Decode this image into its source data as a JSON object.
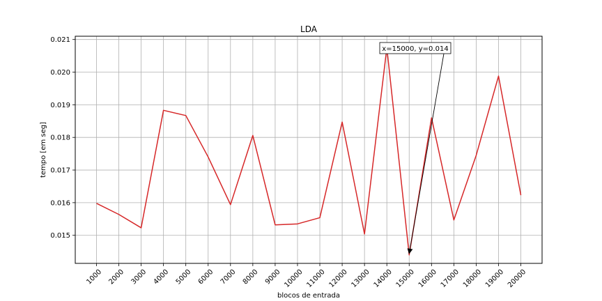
{
  "chart_data": {
    "type": "line",
    "title": "LDA",
    "xlabel": "blocos de entrada",
    "ylabel": "tempo [em seg]",
    "categories": [
      "1000",
      "2000",
      "3000",
      "4000",
      "5000",
      "6000",
      "7000",
      "8000",
      "9000",
      "10000",
      "11000",
      "12000",
      "13000",
      "14000",
      "15000",
      "16000",
      "17000",
      "18000",
      "19000",
      "20000"
    ],
    "x": [
      1000,
      2000,
      3000,
      4000,
      5000,
      6000,
      7000,
      8000,
      9000,
      10000,
      11000,
      12000,
      13000,
      14000,
      15000,
      16000,
      17000,
      18000,
      19000,
      20000
    ],
    "series": [
      {
        "color": "#d62728",
        "values": [
          0.01598,
          0.01564,
          0.01523,
          0.01883,
          0.01867,
          0.0174,
          0.01594,
          0.01806,
          0.01532,
          0.01535,
          0.01554,
          0.01847,
          0.01504,
          0.02075,
          0.0144,
          0.0186,
          0.01547,
          0.01745,
          0.01988,
          0.01623
        ]
      }
    ],
    "xlim": [
      50,
      20950
    ],
    "ylim": [
      0.01414,
      0.0211
    ],
    "yticks": [
      0.015,
      0.016,
      0.017,
      0.018,
      0.019,
      0.02,
      0.021
    ],
    "ytick_labels": [
      "0.015",
      "0.016",
      "0.017",
      "0.018",
      "0.019",
      "0.020",
      "0.021"
    ],
    "grid": true,
    "annotation": {
      "text": "x=15000, y=0.014",
      "point": {
        "x": 15000,
        "y": 0.0144
      },
      "arrow_color": "#000000"
    }
  }
}
